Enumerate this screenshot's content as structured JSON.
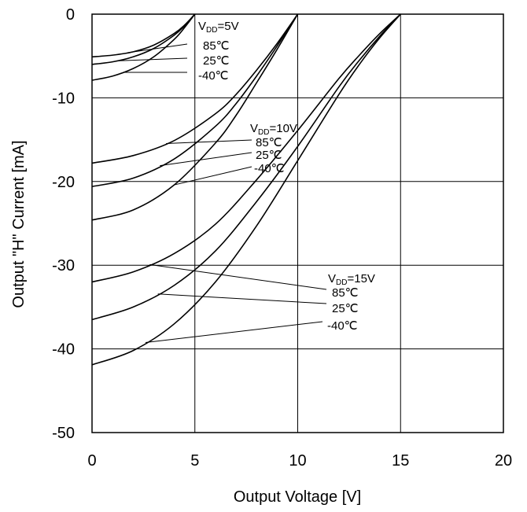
{
  "chart_data": {
    "type": "line",
    "xlabel": "Output Voltage [V]",
    "ylabel": "Output \"H\" Current [mA]",
    "xlim": [
      0,
      20
    ],
    "ylim": [
      -50,
      0
    ],
    "x_ticks": [
      "0",
      "5",
      "10",
      "15",
      "20"
    ],
    "y_ticks": [
      "0",
      "-10",
      "-20",
      "-30",
      "-40",
      "-50"
    ],
    "grid": true,
    "groups": [
      {
        "vdd_label": "DD",
        "vdd_prefix": "V",
        "vdd_value": "=5V",
        "vdd": 5,
        "series": [
          {
            "name": "85℃",
            "x": [
              0,
              1,
              2,
              3,
              4,
              4.5,
              5
            ],
            "y": [
              -5.1,
              -4.9,
              -4.5,
              -3.7,
              -2.3,
              -1.3,
              0
            ]
          },
          {
            "name": "25℃",
            "x": [
              0,
              1,
              2,
              3,
              4,
              4.5,
              5
            ],
            "y": [
              -6.0,
              -5.7,
              -5.1,
              -4.1,
              -2.5,
              -1.4,
              0
            ]
          },
          {
            "name": "-40℃",
            "x": [
              0,
              1,
              2,
              3,
              4,
              4.5,
              5
            ],
            "y": [
              -7.9,
              -7.4,
              -6.5,
              -5.1,
              -3.0,
              -1.6,
              0
            ]
          }
        ]
      },
      {
        "vdd_label": "DD",
        "vdd_prefix": "V",
        "vdd_value": "=10V",
        "vdd": 10,
        "series": [
          {
            "name": "85℃",
            "x": [
              0,
              2,
              4,
              6,
              7,
              8,
              9,
              10
            ],
            "y": [
              -17.8,
              -16.9,
              -15.1,
              -11.9,
              -9.6,
              -6.7,
              -3.5,
              0
            ]
          },
          {
            "name": "25℃",
            "x": [
              0,
              2,
              4,
              6,
              7,
              8,
              9,
              10
            ],
            "y": [
              -20.6,
              -19.6,
              -17.3,
              -13.4,
              -10.7,
              -7.4,
              -3.8,
              0
            ]
          },
          {
            "name": "-40℃",
            "x": [
              0,
              2,
              4,
              6,
              7,
              8,
              9,
              10
            ],
            "y": [
              -24.6,
              -23.4,
              -20.4,
              -15.4,
              -12.1,
              -8.2,
              -4.2,
              0
            ]
          }
        ]
      },
      {
        "vdd_label": "DD",
        "vdd_prefix": "V",
        "vdd_value": "=15V",
        "vdd": 15,
        "series": [
          {
            "name": "85℃",
            "x": [
              0,
              2,
              4,
              6,
              8,
              10,
              12,
              13,
              14,
              15
            ],
            "y": [
              -32.0,
              -30.8,
              -28.6,
              -25.1,
              -19.8,
              -13.9,
              -7.7,
              -4.9,
              -2.3,
              0
            ]
          },
          {
            "name": "25℃",
            "x": [
              0,
              2,
              4,
              6,
              8,
              10,
              12,
              13,
              14,
              15
            ],
            "y": [
              -36.5,
              -35.0,
              -32.4,
              -28.3,
              -22.4,
              -15.8,
              -8.7,
              -5.5,
              -2.6,
              0
            ]
          },
          {
            "name": "-40℃",
            "x": [
              0,
              2,
              4,
              6,
              8,
              10,
              12,
              13,
              14,
              15
            ],
            "y": [
              -41.9,
              -40.2,
              -37.0,
              -32.0,
              -25.3,
              -17.5,
              -9.6,
              -6.0,
              -2.8,
              0
            ]
          }
        ]
      }
    ]
  }
}
